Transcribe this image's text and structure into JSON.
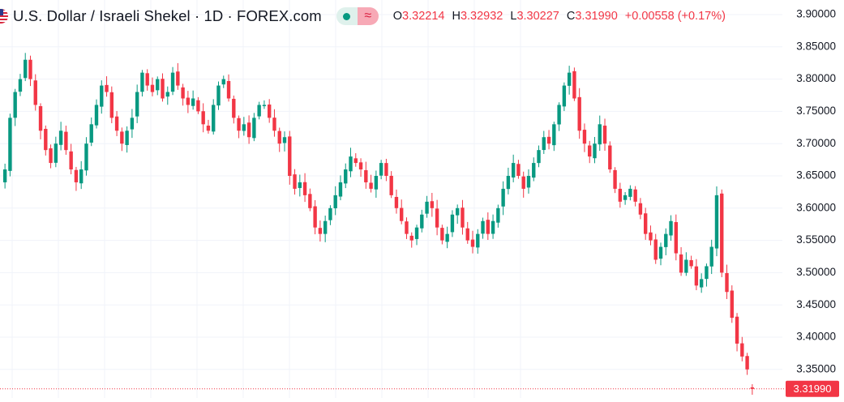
{
  "header": {
    "symbol_title": "U.S. Dollar / Israeli Shekel · 1D · FOREX.com",
    "open_label": "O",
    "open": "3.32214",
    "high_label": "H",
    "high": "3.32932",
    "low_label": "L",
    "low": "3.30227",
    "close_label": "C",
    "close": "3.31990",
    "change": "+0.00558 (+0.17%)",
    "pill_icon_left": "market-status-dot-icon",
    "pill_icon_right": "approx-icon"
  },
  "colors": {
    "up": "#089981",
    "down": "#f23645",
    "grid": "#f0f3fa",
    "text": "#131722",
    "last_price_bg": "#f23645"
  },
  "last_price_label": "3.31990",
  "chart_data": {
    "type": "candlestick",
    "ylim": [
      3.3,
      3.92
    ],
    "y_ticks": [
      "3.90000",
      "3.85000",
      "3.80000",
      "3.75000",
      "3.70000",
      "3.65000",
      "3.60000",
      "3.55000",
      "3.50000",
      "3.45000",
      "3.40000",
      "3.35000"
    ],
    "y_tick_values": [
      3.9,
      3.85,
      3.8,
      3.75,
      3.7,
      3.65,
      3.6,
      3.55,
      3.5,
      3.45,
      3.4,
      3.35
    ],
    "grid": true,
    "last_price": 3.3199,
    "close_series": [
      3.66,
      3.74,
      3.78,
      3.8,
      3.83,
      3.8,
      3.76,
      3.72,
      3.69,
      3.67,
      3.7,
      3.72,
      3.69,
      3.66,
      3.64,
      3.66,
      3.7,
      3.73,
      3.76,
      3.79,
      3.78,
      3.74,
      3.72,
      3.7,
      3.72,
      3.74,
      3.78,
      3.81,
      3.79,
      3.78,
      3.8,
      3.77,
      3.78,
      3.81,
      3.79,
      3.77,
      3.76,
      3.77,
      3.75,
      3.73,
      3.72,
      3.76,
      3.79,
      3.8,
      3.77,
      3.74,
      3.72,
      3.73,
      3.71,
      3.74,
      3.76,
      3.76,
      3.74,
      3.72,
      3.7,
      3.71,
      3.65,
      3.63,
      3.64,
      3.62,
      3.6,
      3.57,
      3.56,
      3.58,
      3.6,
      3.62,
      3.64,
      3.66,
      3.68,
      3.67,
      3.66,
      3.64,
      3.63,
      3.65,
      3.67,
      3.65,
      3.62,
      3.6,
      3.58,
      3.56,
      3.55,
      3.57,
      3.59,
      3.61,
      3.6,
      3.57,
      3.55,
      3.56,
      3.59,
      3.6,
      3.57,
      3.55,
      3.54,
      3.56,
      3.58,
      3.56,
      3.58,
      3.6,
      3.63,
      3.65,
      3.67,
      3.65,
      3.63,
      3.65,
      3.67,
      3.69,
      3.71,
      3.7,
      3.73,
      3.76,
      3.79,
      3.81,
      3.77,
      3.72,
      3.7,
      3.68,
      3.7,
      3.73,
      3.7,
      3.66,
      3.63,
      3.61,
      3.62,
      3.63,
      3.61,
      3.59,
      3.56,
      3.55,
      3.52,
      3.54,
      3.56,
      3.58,
      3.53,
      3.5,
      3.52,
      3.51,
      3.48,
      3.49,
      3.51,
      3.54,
      3.62,
      3.5,
      3.47,
      3.43,
      3.39,
      3.37,
      3.35,
      3.3199
    ]
  }
}
